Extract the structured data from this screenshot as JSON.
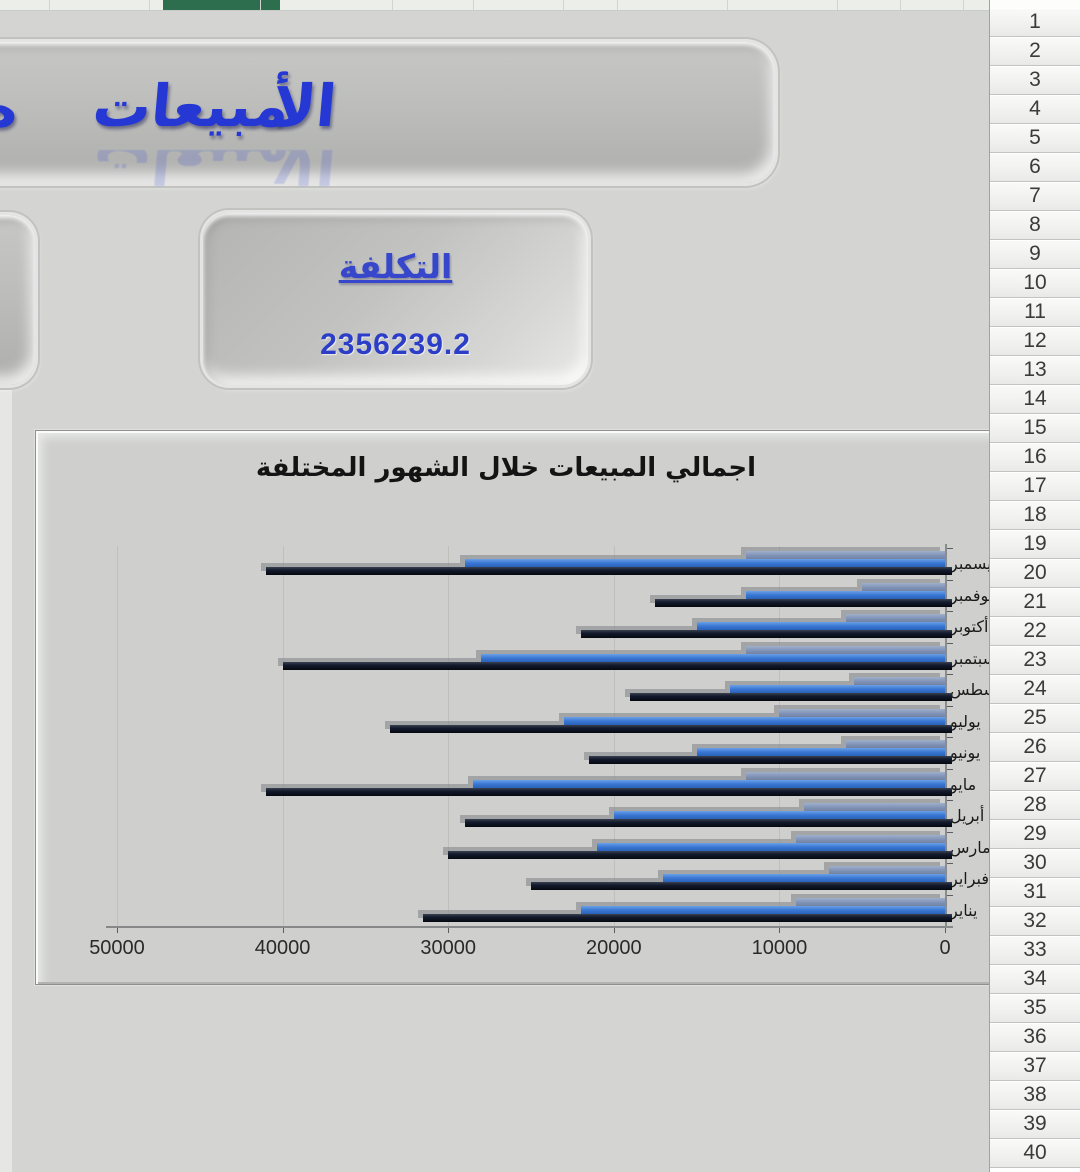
{
  "wordart": {
    "words": [
      "مبيعات",
      "الأ"
    ],
    "partial_glyph": "ه",
    "color": "#2638d4"
  },
  "cost_button": {
    "label": "التكلفة",
    "value": "2356239.2"
  },
  "sheet": {
    "row_numbers": [
      1,
      2,
      3,
      4,
      5,
      6,
      7,
      8,
      9,
      10,
      11,
      12,
      13,
      14,
      15,
      16,
      17,
      18,
      19,
      20,
      21,
      22,
      23,
      24,
      25,
      26,
      27,
      28,
      29,
      30,
      31,
      32,
      33,
      34,
      35,
      36,
      37,
      38,
      39,
      40
    ]
  },
  "colors": {
    "accent_blue": "#2638d4",
    "green_bar": "#2c6e4e",
    "bar_slate": "#8093b8",
    "bar_blue": "#3a78d4",
    "bar_black": "#0e1424"
  },
  "chart_data": {
    "type": "bar",
    "orientation": "horizontal",
    "axis_reversed": true,
    "title": "اجمالي المبيعات خلال الشهور المختلفة",
    "categories": [
      "ديسمبر",
      "نوفمبر",
      "أكتوبر",
      "سبتمبر",
      "أغسطس",
      "يوليو",
      "يونيو",
      "مايو",
      "أبريل",
      "مارس",
      "فبراير",
      "يناير"
    ],
    "series": [
      {
        "name": "series-1-slate",
        "color": "#8093b8",
        "values": [
          12000,
          5000,
          6000,
          12000,
          5500,
          10000,
          6000,
          12000,
          8500,
          9000,
          7000,
          9000
        ]
      },
      {
        "name": "series-2-blue",
        "color": "#3a78d4",
        "values": [
          29000,
          12000,
          15000,
          28000,
          13000,
          23000,
          15000,
          28500,
          20000,
          21000,
          17000,
          22000
        ]
      },
      {
        "name": "series-3-black",
        "color": "#0e1424",
        "values": [
          41000,
          17500,
          22000,
          40000,
          19000,
          33500,
          21500,
          41000,
          29000,
          30000,
          25000,
          31500
        ]
      }
    ],
    "x_ticks": [
      50000,
      40000,
      30000,
      20000,
      10000,
      0
    ],
    "xlim": [
      0,
      50000
    ],
    "grid": true,
    "legend": false
  }
}
